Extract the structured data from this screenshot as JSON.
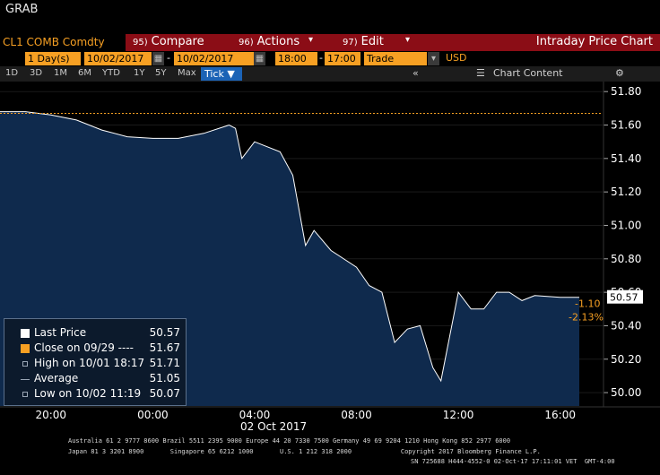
{
  "window": {
    "title": "GRAB"
  },
  "command_bar": {
    "ticker": "CL1 COMB Comdty",
    "compare": {
      "num": "95)",
      "label": "Compare"
    },
    "actions": {
      "num": "96)",
      "label": "Actions"
    },
    "edit": {
      "num": "97)",
      "label": "Edit"
    },
    "title": "Intraday Price Chart"
  },
  "date_bar": {
    "period": "1",
    "period_unit": "Day(s)",
    "start_date": "10/02/2017",
    "end_date": "10/02/2017",
    "start_time": "18:00",
    "end_time": "17:00",
    "dash": "-",
    "market": "Trade",
    "currency": "USD"
  },
  "range_bar": {
    "ranges": [
      "1D",
      "3D",
      "1M",
      "6M",
      "YTD",
      "1Y",
      "5Y",
      "Max"
    ],
    "mode": "Tick",
    "chart_content": "Chart Content"
  },
  "legend": {
    "items": [
      {
        "label": "Last Price",
        "value": "50.57",
        "color": "#ffffff"
      },
      {
        "label": "Close on 09/29  ----",
        "value": "51.67",
        "color": "#f7a023"
      },
      {
        "label": "High on 10/01 18:17",
        "value": "51.71",
        "color": "#9aa6b5"
      },
      {
        "label": "Average",
        "value": "51.05",
        "color": "#9aa6b5"
      },
      {
        "label": "Low on 10/02 11:19",
        "value": "50.07",
        "color": "#9aa6b5"
      }
    ]
  },
  "price_tags": {
    "last": "50.57",
    "change": "-1.10",
    "change_pct": "-2.13%"
  },
  "chart_data": {
    "type": "area",
    "x_tick_labels": [
      "20:00",
      "00:00",
      "04:00",
      "08:00",
      "12:00",
      "16:00"
    ],
    "x_date_label": "02 Oct 2017",
    "y_tick_labels": [
      "51.80",
      "51.60",
      "51.40",
      "51.20",
      "51.00",
      "50.80",
      "50.60",
      "50.40",
      "50.20",
      "50.00"
    ],
    "ylim": [
      49.92,
      51.86
    ],
    "prev_close": 51.67,
    "x": [
      "18:00",
      "19:00",
      "20:00",
      "21:00",
      "22:00",
      "23:00",
      "00:00",
      "01:00",
      "02:00",
      "03:00",
      "03:15",
      "03:30",
      "04:00",
      "05:00",
      "05:30",
      "06:00",
      "06:20",
      "07:00",
      "08:00",
      "08:30",
      "09:00",
      "09:30",
      "10:00",
      "10:30",
      "11:00",
      "11:19",
      "12:00",
      "12:30",
      "13:00",
      "13:30",
      "14:00",
      "14:30",
      "15:00",
      "16:00",
      "17:00"
    ],
    "values": [
      51.68,
      51.68,
      51.66,
      51.63,
      51.57,
      51.53,
      51.52,
      51.52,
      51.55,
      51.6,
      51.58,
      51.4,
      51.5,
      51.44,
      51.3,
      50.88,
      50.97,
      50.85,
      50.75,
      50.64,
      50.6,
      50.3,
      50.38,
      50.4,
      50.15,
      50.07,
      50.6,
      50.5,
      50.5,
      50.6,
      50.6,
      50.55,
      50.58,
      50.57,
      50.57
    ],
    "colors": {
      "line": "#ffffff",
      "fill": "#0f2a4d",
      "prev_close": "#f7a023",
      "background": "#000000"
    }
  },
  "footer": {
    "line1": "Australia 61 2 9777 8600 Brazil 5511 2395 9000 Europe 44 20 7330 7500 Germany 49 69 9204 1210 Hong Kong 852 2977 6000",
    "line2": "Japan 81 3 3201 8900       Singapore 65 6212 1000       U.S. 1 212 318 2000             Copyright 2017 Bloomberg Finance L.P.",
    "line3": "SN 725688 H444-4552-0 02-Oct-17 17:11:01 VET  GMT-4:00"
  }
}
